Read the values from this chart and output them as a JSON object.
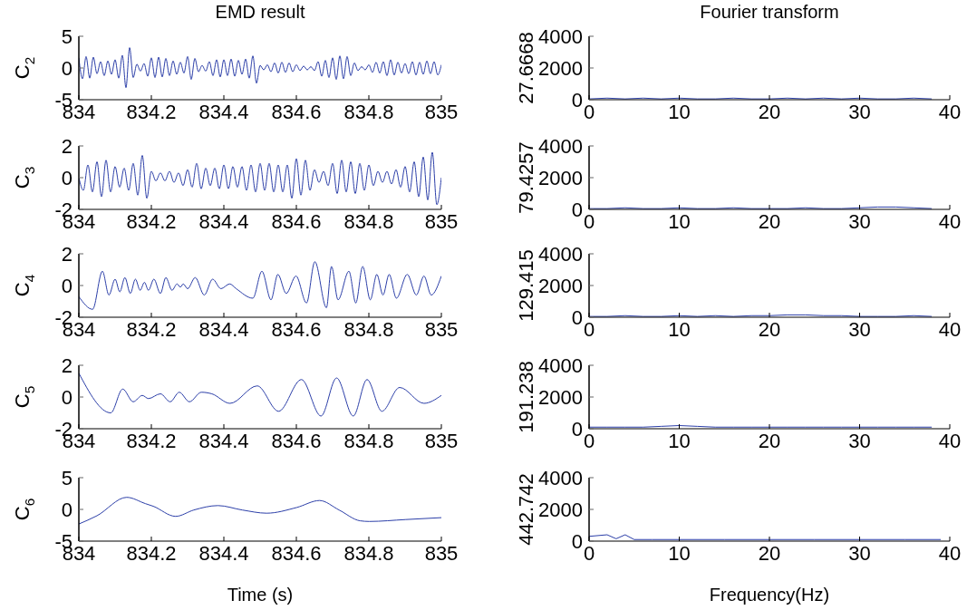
{
  "chart_data": [
    {
      "type": "line",
      "title": "EMD result",
      "ylabel": "C$_{2}$",
      "xlim": [
        834,
        835
      ],
      "xticks": [
        834,
        834.2,
        834.4,
        834.6,
        834.8,
        835
      ],
      "ylim": [
        -5,
        5
      ],
      "yticks": [
        -5,
        0,
        5
      ],
      "marker": "none",
      "x": [
        834,
        834.01,
        834.02,
        834.03,
        834.04,
        834.05,
        834.06,
        834.07,
        834.08,
        834.09,
        834.1,
        834.11,
        834.12,
        834.13,
        834.14,
        834.15,
        834.16,
        834.17,
        834.18,
        834.19,
        834.2,
        834.21,
        834.22,
        834.23,
        834.24,
        834.25,
        834.26,
        834.27,
        834.28,
        834.29,
        834.3,
        834.31,
        834.32,
        834.33,
        834.34,
        834.35,
        834.36,
        834.37,
        834.38,
        834.39,
        834.4,
        834.41,
        834.42,
        834.43,
        834.44,
        834.45,
        834.46,
        834.47,
        834.48,
        834.49,
        834.5,
        834.51,
        834.52,
        834.53,
        834.54,
        834.55,
        834.56,
        834.57,
        834.58,
        834.59,
        834.6,
        834.61,
        834.62,
        834.63,
        834.64,
        834.65,
        834.66,
        834.67,
        834.68,
        834.69,
        834.7,
        834.71,
        834.72,
        834.73,
        834.74,
        834.75,
        834.76,
        834.77,
        834.78,
        834.79,
        834.8,
        834.81,
        834.82,
        834.83,
        834.84,
        834.85,
        834.86,
        834.87,
        834.88,
        834.89,
        834.9,
        834.91,
        834.92,
        834.93,
        834.94,
        834.95,
        834.96,
        834.97,
        834.98,
        834.99,
        835
      ],
      "values": [
        1.6,
        -1.7,
        1.8,
        -1.6,
        1.7,
        -0.9,
        1.0,
        -1.2,
        1.1,
        -1.0,
        1.3,
        -1.6,
        2.0,
        -3.1,
        3.2,
        -1.5,
        0.6,
        -0.5,
        0.7,
        -1.3,
        1.6,
        -1.5,
        1.7,
        -1.4,
        1.5,
        -1.2,
        1.1,
        -1.0,
        0.9,
        -0.8,
        1.8,
        -1.8,
        1.5,
        -0.6,
        0.4,
        -0.5,
        1.0,
        -1.2,
        1.3,
        -1.4,
        1.3,
        -1.2,
        1.4,
        -1.3,
        1.2,
        -1.0,
        1.4,
        -1.6,
        1.9,
        -2.4,
        0.4,
        -0.3,
        0.5,
        -0.6,
        0.8,
        -0.8,
        0.9,
        -0.7,
        0.8,
        -0.6,
        0.5,
        -0.4,
        0.3,
        -0.3,
        0.2,
        -0.4,
        1.0,
        -1.3,
        1.2,
        -1.5,
        1.6,
        -1.8,
        1.9,
        -1.7,
        1.8,
        -1.2,
        0.8,
        -0.4,
        0.2,
        -0.3,
        0.5,
        -0.7,
        0.9,
        -0.8,
        1.0,
        -1.2,
        1.3,
        -1.1,
        0.9,
        -0.8,
        0.7,
        -0.9,
        1.0,
        -1.1,
        0.9,
        -1.0,
        1.1,
        -0.9,
        1.0,
        -1.1,
        0.5
      ],
      "color": "#2b3ea8"
    },
    {
      "type": "line",
      "title": "Fourier transform",
      "ylabel": "27.6668",
      "xlim": [
        0,
        40
      ],
      "xticks": [
        0,
        10,
        20,
        30,
        40
      ],
      "ylim": [
        0,
        4000
      ],
      "yticks": [
        0,
        2000,
        4000
      ],
      "marker": "none",
      "x": [
        0,
        2,
        4,
        6,
        8,
        10,
        12,
        14,
        16,
        18,
        20,
        22,
        24,
        26,
        28,
        30,
        32,
        34,
        36,
        38
      ],
      "values": [
        50,
        100,
        50,
        100,
        50,
        100,
        50,
        50,
        100,
        50,
        50,
        100,
        50,
        100,
        50,
        100,
        50,
        50,
        100,
        50
      ],
      "color": "#2b3ea8"
    },
    {
      "type": "line",
      "ylabel": "C$_{3}$",
      "xlim": [
        834,
        835
      ],
      "xticks": [
        834,
        834.2,
        834.4,
        834.6,
        834.8,
        835
      ],
      "ylim": [
        -2,
        2
      ],
      "yticks": [
        -2,
        0,
        2
      ],
      "marker": "none",
      "x": [
        834,
        834.0125,
        834.025,
        834.0375,
        834.05,
        834.0625,
        834.075,
        834.0875,
        834.1,
        834.1125,
        834.125,
        834.1375,
        834.15,
        834.1625,
        834.175,
        834.1875,
        834.2,
        834.2125,
        834.225,
        834.2375,
        834.25,
        834.2625,
        834.275,
        834.2875,
        834.3,
        834.3125,
        834.325,
        834.3375,
        834.35,
        834.3625,
        834.375,
        834.3875,
        834.4,
        834.4125,
        834.425,
        834.4375,
        834.45,
        834.4625,
        834.475,
        834.4875,
        834.5,
        834.5125,
        834.525,
        834.5375,
        834.55,
        834.5625,
        834.575,
        834.5875,
        834.6,
        834.6125,
        834.625,
        834.6375,
        834.65,
        834.6625,
        834.675,
        834.6875,
        834.7,
        834.7125,
        834.725,
        834.7375,
        834.75,
        834.7625,
        834.775,
        834.7875,
        834.8,
        834.8125,
        834.825,
        834.8375,
        834.85,
        834.8625,
        834.875,
        834.8875,
        834.9,
        834.9125,
        834.925,
        834.9375,
        834.95,
        834.9625,
        834.975,
        834.9875,
        835
      ],
      "values": [
        0,
        -0.8,
        0.8,
        -0.9,
        1.0,
        -1.2,
        1.1,
        -0.9,
        0.7,
        -0.6,
        0.6,
        -0.8,
        0.9,
        -1.1,
        1.4,
        -1.3,
        0.4,
        -0.2,
        0.3,
        -0.2,
        0.4,
        -0.3,
        0.3,
        -0.5,
        0.5,
        -0.6,
        0.9,
        -0.7,
        0.6,
        -0.5,
        0.6,
        -0.7,
        0.8,
        -0.7,
        0.7,
        -0.6,
        0.7,
        -0.8,
        0.8,
        -0.9,
        0.9,
        -0.8,
        0.9,
        -0.9,
        0.8,
        -0.9,
        0.8,
        -1.3,
        1.2,
        -1.1,
        1.1,
        -0.8,
        0.5,
        -0.3,
        0.4,
        -0.5,
        0.9,
        -1.0,
        1.1,
        -0.9,
        1.0,
        -1.0,
        0.9,
        -0.8,
        0.8,
        -0.5,
        0.4,
        -0.3,
        0.4,
        -0.4,
        0.5,
        -0.6,
        0.7,
        -0.9,
        1.0,
        -1.2,
        1.3,
        -1.4,
        1.6,
        -1.7,
        0.0
      ],
      "color": "#2b3ea8"
    },
    {
      "type": "line",
      "ylabel": "79.4257",
      "xlim": [
        0,
        40
      ],
      "xticks": [
        0,
        10,
        20,
        30,
        40
      ],
      "ylim": [
        0,
        4000
      ],
      "yticks": [
        0,
        2000,
        4000
      ],
      "marker": "none",
      "x": [
        0,
        2,
        4,
        6,
        8,
        10,
        12,
        14,
        16,
        18,
        20,
        22,
        24,
        26,
        28,
        30,
        32,
        34,
        36,
        38
      ],
      "values": [
        50,
        50,
        100,
        50,
        50,
        100,
        50,
        50,
        100,
        50,
        50,
        50,
        100,
        50,
        50,
        100,
        150,
        150,
        100,
        50
      ],
      "color": "#2b3ea8"
    },
    {
      "type": "line",
      "ylabel": "C$_{4}$",
      "xlim": [
        834,
        835
      ],
      "xticks": [
        834,
        834.2,
        834.4,
        834.6,
        834.8,
        835
      ],
      "ylim": [
        -2,
        2
      ],
      "yticks": [
        -2,
        0,
        2
      ],
      "marker": "none",
      "x": [
        834,
        834.038,
        834.065,
        834.083,
        834.1,
        834.113,
        834.127,
        834.142,
        834.156,
        834.169,
        834.181,
        834.192,
        834.207,
        834.225,
        834.24,
        834.257,
        834.271,
        834.28,
        834.288,
        834.3,
        834.321,
        834.346,
        834.369,
        834.392,
        834.416,
        834.434,
        834.48,
        834.505,
        834.53,
        834.549,
        834.572,
        834.599,
        834.628,
        834.651,
        834.683,
        834.697,
        834.715,
        834.745,
        834.764,
        834.783,
        834.804,
        834.822,
        834.839,
        834.856,
        834.876,
        834.906,
        834.931,
        834.952,
        834.972,
        835
      ],
      "values": [
        -0.7,
        -1.5,
        0.9,
        -0.6,
        0.4,
        -0.4,
        0.5,
        -0.5,
        0.4,
        -0.3,
        0.2,
        -0.3,
        0.4,
        -0.5,
        0.5,
        -0.3,
        0.1,
        -0.1,
        0.1,
        -0.2,
        0.5,
        -0.6,
        0.4,
        -0.2,
        0.1,
        -0.2,
        -0.8,
        0.9,
        -0.9,
        0.7,
        -0.5,
        0.6,
        -1.1,
        1.5,
        -1.4,
        1.2,
        -0.9,
        0.9,
        -1.1,
        1.2,
        -0.9,
        0.7,
        -0.6,
        0.7,
        -0.8,
        0.7,
        -0.6,
        0.6,
        -0.6,
        0.6
      ],
      "color": "#2b3ea8"
    },
    {
      "type": "line",
      "ylabel": "129.415",
      "xlim": [
        0,
        40
      ],
      "xticks": [
        0,
        10,
        20,
        30,
        40
      ],
      "ylim": [
        0,
        4000
      ],
      "yticks": [
        0,
        2000,
        4000
      ],
      "marker": "none",
      "x": [
        0,
        2,
        4,
        6,
        8,
        10,
        12,
        14,
        16,
        18,
        20,
        22,
        24,
        26,
        28,
        30,
        32,
        34,
        36,
        38
      ],
      "values": [
        50,
        50,
        100,
        50,
        50,
        100,
        50,
        100,
        50,
        100,
        100,
        150,
        150,
        100,
        100,
        50,
        50,
        50,
        100,
        50
      ],
      "color": "#2b3ea8"
    },
    {
      "type": "line",
      "ylabel": "C$_{5}$",
      "xlim": [
        834,
        835
      ],
      "xticks": [
        834,
        834.2,
        834.4,
        834.6,
        834.8,
        835
      ],
      "ylim": [
        -2,
        2
      ],
      "yticks": [
        -2,
        0,
        2
      ],
      "marker": "none",
      "x": [
        834,
        834.088,
        834.121,
        834.15,
        834.175,
        834.192,
        834.225,
        834.252,
        834.277,
        834.305,
        834.338,
        834.367,
        834.417,
        834.492,
        834.551,
        834.614,
        834.668,
        834.711,
        834.757,
        834.795,
        834.836,
        834.885,
        834.952,
        835
      ],
      "values": [
        1.5,
        -1.0,
        0.5,
        -0.3,
        0.1,
        -0.1,
        0.2,
        -0.3,
        0.3,
        -0.3,
        0.3,
        0.2,
        -0.4,
        0.7,
        -0.9,
        1.1,
        -1.2,
        1.2,
        -1.2,
        1.1,
        -0.9,
        0.6,
        -0.4,
        0.1
      ],
      "color": "#2b3ea8"
    },
    {
      "type": "line",
      "ylabel": "191.238",
      "xlim": [
        0,
        40
      ],
      "xticks": [
        0,
        10,
        20,
        30,
        40
      ],
      "ylim": [
        0,
        4000
      ],
      "yticks": [
        0,
        2000,
        4000
      ],
      "marker": "none",
      "x": [
        0,
        2,
        4,
        6,
        8,
        10,
        12,
        14,
        16,
        18,
        20,
        22,
        24,
        26,
        28,
        30,
        32,
        34,
        36,
        38
      ],
      "values": [
        100,
        100,
        100,
        100,
        150,
        200,
        150,
        100,
        100,
        100,
        100,
        100,
        100,
        100,
        100,
        100,
        100,
        100,
        100,
        100
      ],
      "color": "#2b3ea8"
    },
    {
      "type": "line",
      "ylabel": "C$_{6}$",
      "xlabel": "Time (s)",
      "xlim": [
        834,
        835
      ],
      "xticks": [
        834,
        834.2,
        834.4,
        834.6,
        834.8,
        835
      ],
      "ylim": [
        -5,
        5
      ],
      "yticks": [
        -5,
        0,
        5
      ],
      "marker": "none",
      "x": [
        834,
        834.05,
        834.132,
        834.184,
        834.205,
        834.267,
        834.317,
        834.384,
        834.451,
        834.518,
        834.601,
        834.664,
        834.718,
        834.776,
        834.801,
        834.902,
        835
      ],
      "values": [
        -2.3,
        -1.0,
        1.9,
        0.9,
        0.5,
        -1.1,
        -0.1,
        0.6,
        -0.1,
        -0.6,
        0.3,
        1.4,
        -0.1,
        -1.8,
        -1.9,
        -1.6,
        -1.3
      ],
      "color": "#2b3ea8"
    },
    {
      "type": "line",
      "ylabel": "442.742",
      "xlabel": "Frequency(Hz)",
      "xlim": [
        0,
        40
      ],
      "xticks": [
        0,
        10,
        20,
        30,
        40
      ],
      "ylim": [
        0,
        4000
      ],
      "yticks": [
        0,
        2000,
        4000
      ],
      "marker": "none",
      "x": [
        0,
        2,
        3,
        4,
        5,
        7,
        10,
        15,
        20,
        25,
        30,
        35,
        39
      ],
      "values": [
        300,
        400,
        150,
        400,
        100,
        100,
        100,
        100,
        100,
        100,
        100,
        100,
        100
      ],
      "color": "#2b3ea8"
    }
  ]
}
